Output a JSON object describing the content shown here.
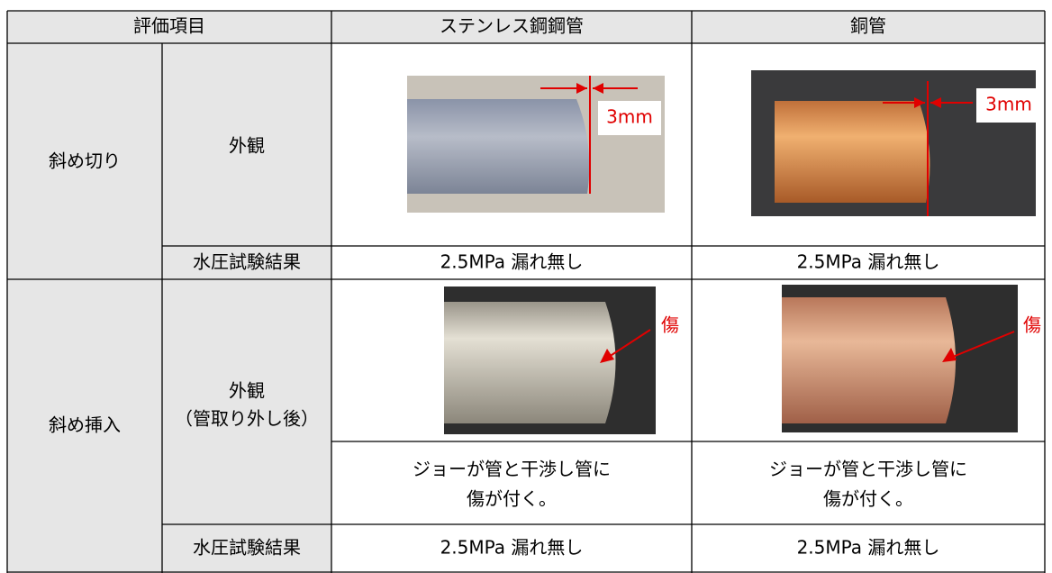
{
  "table": {
    "header": [
      "評価項目",
      "ステンレス鋼鋼管",
      "銅管"
    ],
    "groups": [
      {
        "label": "斜め切り",
        "rows": [
          {
            "item": "外観",
            "annotations": [
              "3mm",
              "3mm"
            ]
          },
          {
            "item": "水圧試験結果",
            "cells": [
              "2.5MPa 漏れ無し",
              "2.5MPa 漏れ無し"
            ]
          }
        ]
      },
      {
        "label": "斜め挿入",
        "rows": [
          {
            "item": [
              "外観",
              "（管取り外し後）"
            ],
            "annotations": [
              "傷",
              "傷"
            ]
          },
          {
            "cells": [
              [
                "ジョーが管と干渉し管に",
                "傷が付く。"
              ],
              [
                "ジョーが管と干渉し管に",
                "傷が付く。"
              ]
            ]
          },
          {
            "item": "水圧試験結果",
            "cells": [
              "2.5MPa 漏れ無し",
              "2.5MPa 漏れ無し"
            ]
          }
        ]
      }
    ]
  }
}
